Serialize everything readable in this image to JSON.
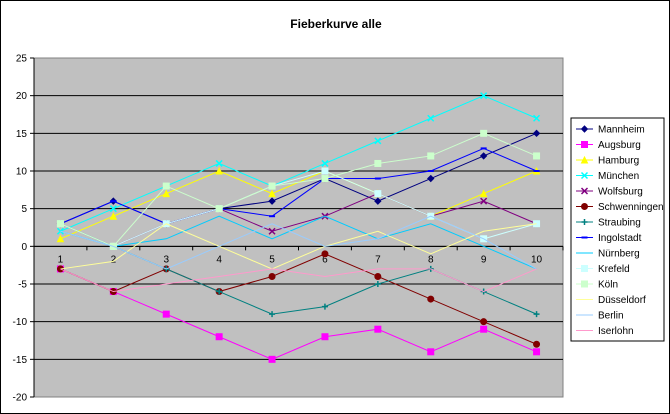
{
  "chart_data": {
    "type": "line",
    "title": "Fieberkurve alle",
    "xlabel": "",
    "ylabel": "",
    "categories": [
      "1",
      "2",
      "3",
      "4",
      "5",
      "6",
      "7",
      "8",
      "9",
      "10"
    ],
    "ylim": [
      -20,
      25
    ],
    "yticks": [
      -20,
      -15,
      -10,
      -5,
      0,
      5,
      10,
      15,
      20,
      25
    ],
    "grid": true,
    "legend": "right",
    "plot_background": "#c0c0c0",
    "series": [
      {
        "name": "Mannheim",
        "color": "#000080",
        "marker": "diamond",
        "values": [
          3,
          6,
          3,
          5,
          6,
          9,
          6,
          9,
          12,
          15
        ]
      },
      {
        "name": "Augsburg",
        "color": "#ff00ff",
        "marker": "square",
        "values": [
          -3,
          -6,
          -9,
          -12,
          -15,
          -12,
          -11,
          -14,
          -11,
          -14
        ]
      },
      {
        "name": "Hamburg",
        "color": "#ffff00",
        "marker": "triangle",
        "values": [
          1,
          4,
          7,
          10,
          7,
          10,
          7,
          4,
          7,
          10
        ]
      },
      {
        "name": "München",
        "color": "#00ffff",
        "marker": "x",
        "values": [
          2,
          5,
          8,
          11,
          8,
          11,
          14,
          17,
          20,
          17
        ]
      },
      {
        "name": "Wolfsburg",
        "color": "#800080",
        "marker": "x",
        "values": [
          3,
          0,
          3,
          5,
          2,
          4,
          7,
          4,
          6,
          3
        ]
      },
      {
        "name": "Schwenningen",
        "color": "#800000",
        "marker": "circle",
        "values": [
          -3,
          -6,
          -3,
          -6,
          -4,
          -1,
          -4,
          -7,
          -10,
          -13
        ]
      },
      {
        "name": "Straubing",
        "color": "#008080",
        "marker": "plus",
        "values": [
          3,
          0,
          -3,
          -6,
          -9,
          -8,
          -5,
          -3,
          -6,
          -9
        ]
      },
      {
        "name": "Ingolstadt",
        "color": "#0000ff",
        "marker": "dash",
        "values": [
          3,
          6,
          3,
          5,
          4,
          9,
          9,
          10,
          13,
          10
        ]
      },
      {
        "name": "Nürnberg",
        "color": "#00ccff",
        "marker": "none",
        "values": [
          2,
          0,
          1,
          4,
          1,
          4,
          1,
          3,
          0,
          -3
        ]
      },
      {
        "name": "Krefeld",
        "color": "#ccffff",
        "marker": "square",
        "values": [
          3,
          0,
          3,
          5,
          8,
          10,
          7,
          4,
          1,
          3
        ]
      },
      {
        "name": "Köln",
        "color": "#ccffcc",
        "marker": "square",
        "values": [
          3,
          0,
          8,
          5,
          8,
          9,
          11,
          12,
          15,
          12
        ]
      },
      {
        "name": "Düsseldorf",
        "color": "#ffff99",
        "marker": "none",
        "values": [
          -3,
          -2,
          3,
          0,
          -3,
          0,
          2,
          -1,
          2,
          3
        ]
      },
      {
        "name": "Berlin",
        "color": "#99ccff",
        "marker": "none",
        "values": [
          2,
          0,
          -3,
          0,
          3,
          0,
          1,
          4,
          1,
          -3
        ]
      },
      {
        "name": "Iserlohn",
        "color": "#ff99cc",
        "marker": "none",
        "values": [
          -3,
          -6,
          -5,
          -4,
          -3,
          -4,
          -3,
          -3,
          -6,
          -3
        ]
      }
    ]
  }
}
